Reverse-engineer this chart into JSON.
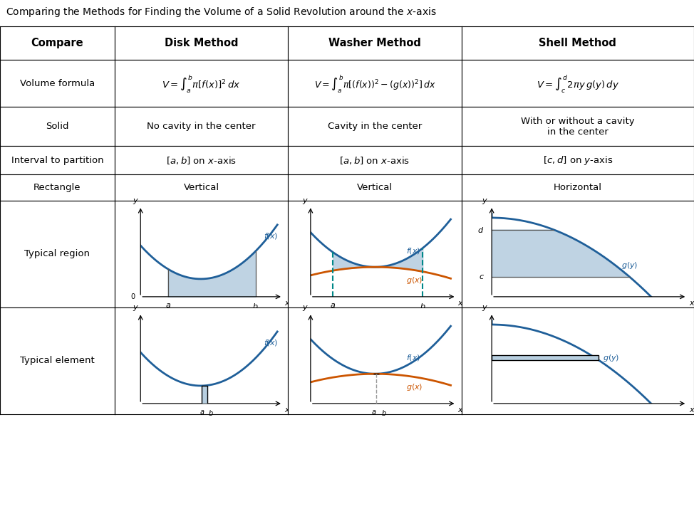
{
  "title": "Comparing the Methods for Finding the Volume of a Solid Revolution around the $\\it{x}$-axis",
  "col_headers": [
    "Compare",
    "Disk Method",
    "Washer Method",
    "Shell Method"
  ],
  "row_labels": [
    "Volume formula",
    "Solid",
    "Interval to partition",
    "Rectangle",
    "Typical region",
    "Typical element"
  ],
  "disk_formula": "$V = \\int_a^b \\pi[f(x)]^2 \\, dx$",
  "washer_formula": "$V = \\int_a^b \\pi[(f(x))^2 - (g(x))^2] \\, dx$",
  "shell_formula": "$V = \\int_c^d 2\\pi y \\, g(y) \\, dy$",
  "disk_solid": "No cavity in the center",
  "washer_solid": "Cavity in the center",
  "shell_solid": "With or without a cavity\nin the center",
  "disk_interval": "$[a, b]$ on $x$-axis",
  "washer_interval": "$[a, b]$ on $x$-axis",
  "shell_interval": "$[c, d]$ on $y$-axis",
  "disk_rect": "Vertical",
  "washer_rect": "Vertical",
  "shell_rect": "Horizontal",
  "curve_color": "#1f5f99",
  "fill_color": "#b8cfe0",
  "g_curve_color": "#cc5500",
  "dashed_color": "#008888",
  "shaded_rect_color": "#b8cfe0",
  "bg_color": "#ffffff"
}
